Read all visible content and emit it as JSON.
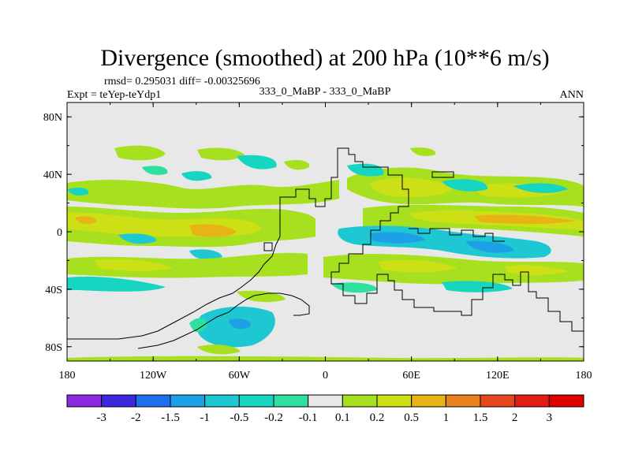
{
  "chart_data": {
    "type": "heatmap",
    "title": "Divergence (smoothed) at 200 hPa (10**6 m/s)",
    "stats_line": "rmsd= 0.295031 diff= -0.00325696",
    "expt_label": "Expt = teYep-teYdp1",
    "case_label": "333_0_MaBP - 333_0_MaBP",
    "season_label": "ANN",
    "x_ticks": [
      "180",
      "120W",
      "60W",
      "0",
      "60E",
      "120E",
      "180"
    ],
    "y_ticks": [
      "80N",
      "40N",
      "0",
      "40S",
      "80S"
    ],
    "xlim": [
      -180,
      180
    ],
    "ylim": [
      -90,
      90
    ],
    "colorbar_levels": [
      "-3",
      "-2",
      "-1.5",
      "-1",
      "-0.5",
      "-0.2",
      "-0.1",
      "0.1",
      "0.2",
      "0.5",
      "1",
      "1.5",
      "2",
      "3"
    ],
    "colorbar_colors": [
      "#8a2be2",
      "#3c28e0",
      "#1e6ff0",
      "#1ea0e6",
      "#1ec8d2",
      "#16d6c2",
      "#2ee0a0",
      "#e8e8e8",
      "#a6e01e",
      "#cde016",
      "#e6b414",
      "#e8821e",
      "#e8461e",
      "#e01e14",
      "#e00000"
    ],
    "background_color": "#e8e8e8"
  }
}
